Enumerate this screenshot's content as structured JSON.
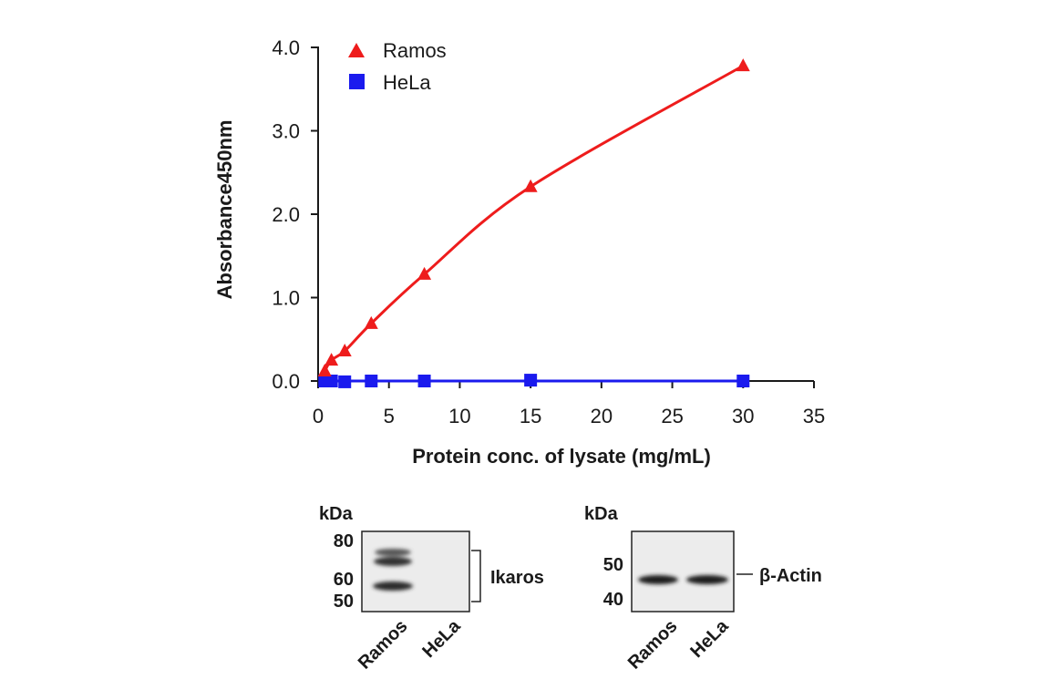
{
  "chart_data": {
    "type": "scatter",
    "title": "",
    "xlabel": "Protein conc. of lysate (mg/mL)",
    "ylabel": "Absorbance450nm",
    "xlim": [
      0,
      35
    ],
    "ylim": [
      0,
      4.0
    ],
    "x_ticks": [
      0,
      5,
      10,
      15,
      20,
      25,
      30,
      35
    ],
    "y_ticks": [
      0.0,
      1.0,
      2.0,
      3.0,
      4.0
    ],
    "y_tick_labels": [
      "0.0",
      "1.0",
      "2.0",
      "3.0",
      "4.0"
    ],
    "grid": false,
    "legend_position": "top-left",
    "series": [
      {
        "name": "Ramos",
        "marker": "triangle",
        "color": "#ee1c1c",
        "x": [
          0.47,
          0.94,
          1.88,
          3.75,
          7.5,
          15,
          30
        ],
        "y": [
          0.12,
          0.25,
          0.36,
          0.69,
          1.28,
          2.33,
          3.78
        ]
      },
      {
        "name": "HeLa",
        "marker": "square",
        "color": "#1a1aee",
        "x": [
          0.47,
          0.94,
          1.88,
          3.75,
          7.5,
          15,
          30
        ],
        "y": [
          0.0,
          0.0,
          -0.01,
          0.0,
          0.0,
          0.01,
          0.0
        ]
      }
    ]
  },
  "blots": {
    "left": {
      "kda_label": "kDa",
      "markers": [
        "80",
        "60",
        "50"
      ],
      "band_label": "Ikaros",
      "lanes": [
        "Ramos",
        "HeLa"
      ]
    },
    "right": {
      "kda_label": "kDa",
      "markers": [
        "50",
        "40"
      ],
      "band_label": "β-Actin",
      "lanes": [
        "Ramos",
        "HeLa"
      ]
    }
  }
}
